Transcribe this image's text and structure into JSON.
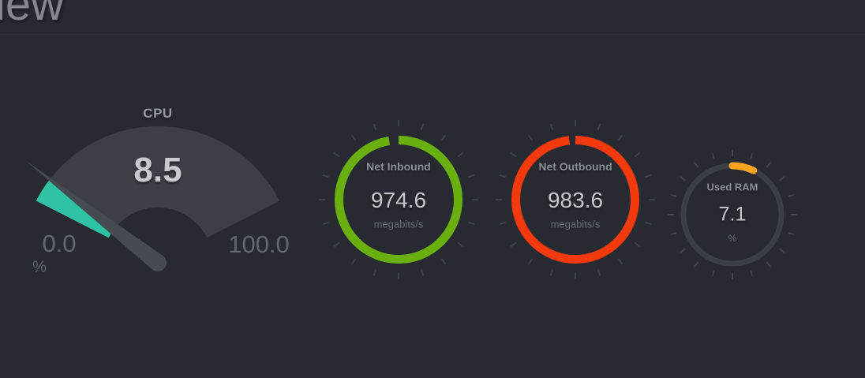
{
  "page": {
    "title_partial": "iew",
    "background": "#272a30"
  },
  "chart_data": [
    {
      "type": "gauge",
      "variant": "fan-needle",
      "title": "CPU",
      "value": 8.5,
      "value_label": "8.5",
      "min": 0,
      "max": 100,
      "min_label": "0.0",
      "max_label": "100.0",
      "unit": "%",
      "fill_color": "#2ec3a4",
      "track_color": "#3c4046",
      "needle_color": "#464b52"
    },
    {
      "type": "gauge",
      "variant": "circle",
      "title": "Net Inbound",
      "value": 974.6,
      "value_label": "974.6",
      "min": 0,
      "max": 1000,
      "unit": "megabits/s",
      "ring_color": "#69b00e",
      "tick_color": "#3d4249"
    },
    {
      "type": "gauge",
      "variant": "circle",
      "title": "Net Outbound",
      "value": 983.6,
      "value_label": "983.6",
      "min": 0,
      "max": 1000,
      "unit": "megabits/s",
      "ring_color": "#f43a0c",
      "tick_color": "#3d4249"
    },
    {
      "type": "gauge",
      "variant": "circle-track",
      "title": "Used RAM",
      "value": 7.1,
      "value_label": "7.1",
      "min": 0,
      "max": 100,
      "unit": "%",
      "ring_color": "#f8a41f",
      "track_color": "#3a3f46",
      "tick_color": "#3f444b"
    }
  ]
}
